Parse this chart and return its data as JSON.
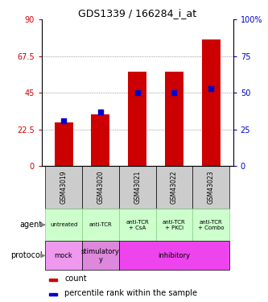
{
  "title": "GDS1339 / 166284_i_at",
  "samples": [
    "GSM43019",
    "GSM43020",
    "GSM43021",
    "GSM43022",
    "GSM43023"
  ],
  "counts": [
    27,
    32,
    58,
    58,
    78
  ],
  "percentile_ranks": [
    31,
    37,
    50,
    50,
    53
  ],
  "left_ylim": [
    0,
    90
  ],
  "right_ylim": [
    0,
    100
  ],
  "left_yticks": [
    0,
    22.5,
    45,
    67.5,
    90
  ],
  "right_yticks": [
    0,
    25,
    50,
    75,
    100
  ],
  "left_yticklabels": [
    "0",
    "22.5",
    "45",
    "67.5",
    "90"
  ],
  "right_yticklabels": [
    "0",
    "25",
    "50",
    "75",
    "100%"
  ],
  "bar_color": "#cc0000",
  "dot_color": "#0000cc",
  "agent_labels": [
    "untreated",
    "anti-TCR",
    "anti-TCR\n+ CsA",
    "anti-TCR\n+ PKCi",
    "anti-TCR\n+ Combo"
  ],
  "agent_bg": "#ccffcc",
  "agent_border": "#88cc88",
  "protocol_bg_mock": "#ee99ee",
  "protocol_bg_stim": "#dd88dd",
  "protocol_bg_inhib": "#ee44ee",
  "gsm_bg": "#cccccc",
  "legend_count_color": "#cc0000",
  "legend_pct_color": "#0000cc",
  "dotted_line_color": "#777777",
  "proto_info": [
    [
      0,
      0,
      "mock"
    ],
    [
      1,
      1,
      "stimulatory\ny"
    ],
    [
      2,
      4,
      "inhibitory"
    ]
  ]
}
